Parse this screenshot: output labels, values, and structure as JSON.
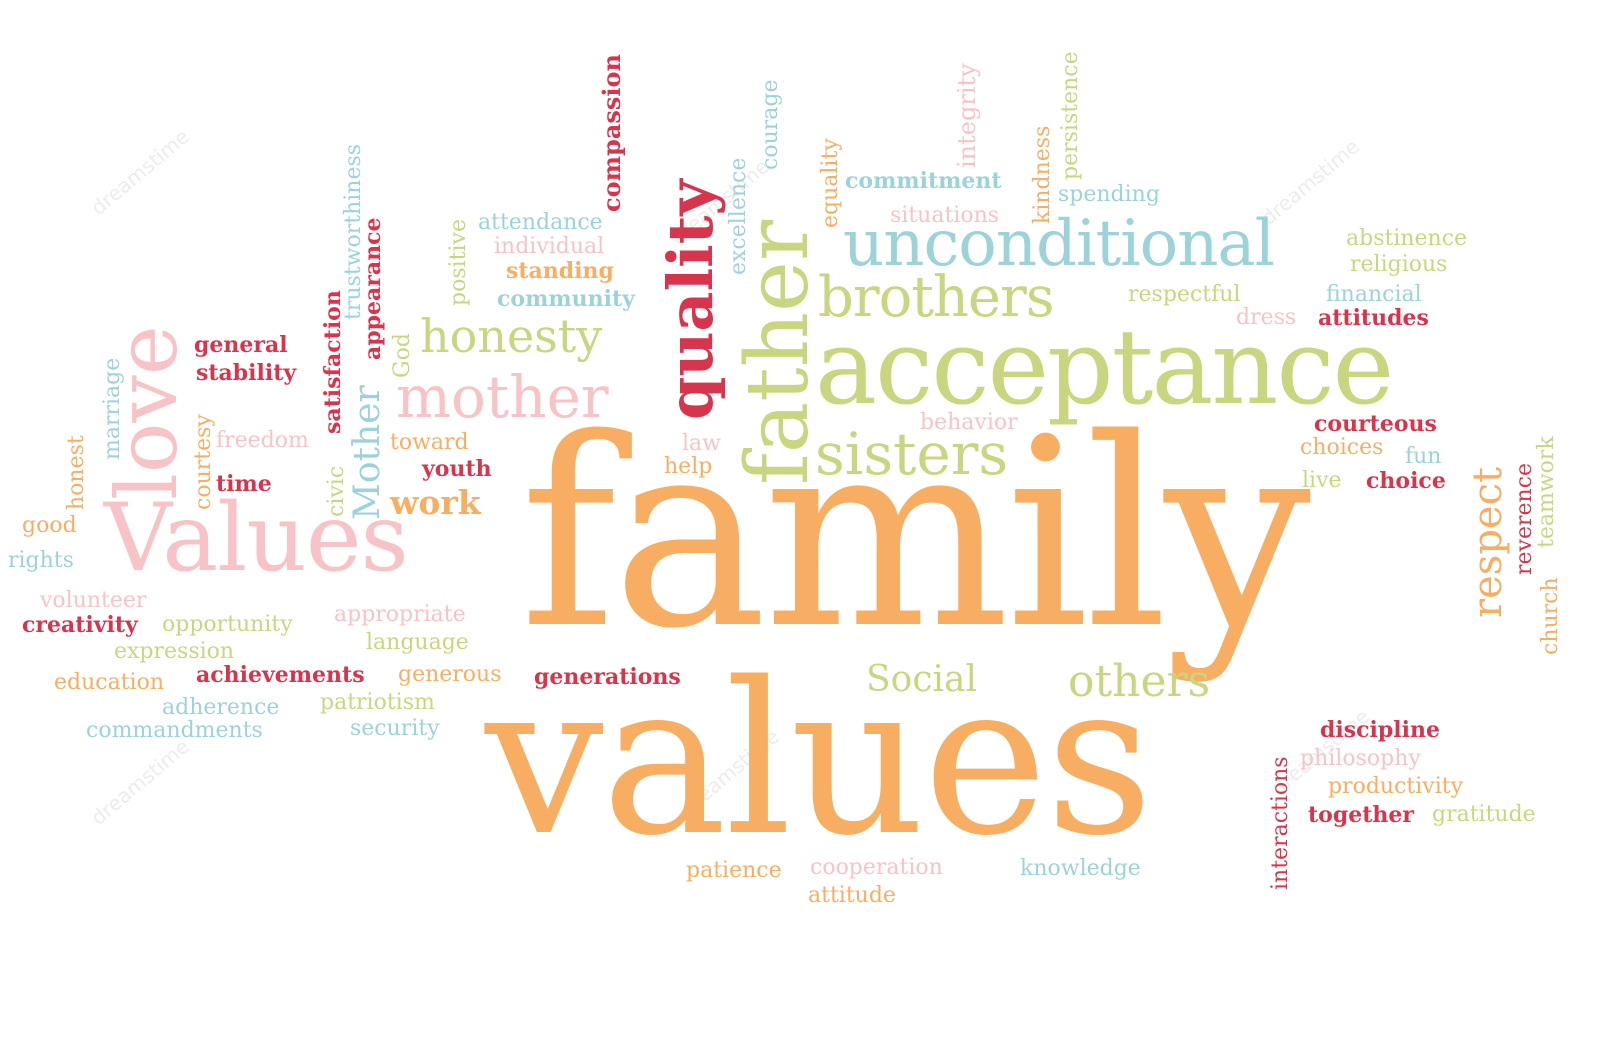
{
  "colors": {
    "orange": "#f7ae62",
    "green": "#c9d67f",
    "pink": "#f8c3c6",
    "blue": "#9cd3d9",
    "red": "#d7344d"
  },
  "watermark": "dreamstime",
  "words": {
    "family": "family",
    "values": "values",
    "acceptance": "acceptance",
    "unconditional": "unconditional",
    "brothers": "brothers",
    "sisters": "sisters",
    "father": "father",
    "quality": "quality",
    "love": "love",
    "values_cap": "Values",
    "mother": "mother",
    "honesty": "honesty",
    "others": "others",
    "social": "Social",
    "respect": "respect",
    "work": "work",
    "youth": "youth",
    "toward": "toward",
    "mother_cap": "Mother",
    "god": "God",
    "civic": "civic",
    "appearance": "appearance",
    "satisfaction": "satisfaction",
    "trustworthiness": "trustworthiness",
    "positive": "positive",
    "compassion": "compassion",
    "attendance": "attendance",
    "individual": "individual",
    "standing": "standing",
    "community": "community",
    "excellence": "excellence",
    "courage": "courage",
    "equality": "equality",
    "commitment": "commitment",
    "integrity": "integrity",
    "situations": "situations",
    "kindness": "kindness",
    "persistence": "persistence",
    "spending": "spending",
    "abstinence": "abstinence",
    "religious": "religious",
    "respectful": "respectful",
    "financial": "financial",
    "dress": "dress",
    "attitudes": "attitudes",
    "behavior": "behavior",
    "courteous": "courteous",
    "choices": "choices",
    "fun": "fun",
    "live": "live",
    "choice": "choice",
    "reverence": "reverence",
    "teamwork": "teamwork",
    "church": "church",
    "law": "law",
    "help": "help",
    "general": "general",
    "stability": "stability",
    "freedom": "freedom",
    "time": "time",
    "courtesy": "courtesy",
    "marriage": "marriage",
    "honest": "honest",
    "good": "good",
    "rights": "rights",
    "volunteer": "volunteer",
    "creativity": "creativity",
    "opportunity": "opportunity",
    "appropriate": "appropriate",
    "language": "language",
    "expression": "expression",
    "education": "education",
    "achievements": "achievements",
    "generous": "generous",
    "generations": "generations",
    "adherence": "adherence",
    "patriotism": "patriotism",
    "commandments": "commandments",
    "security": "security",
    "discipline": "discipline",
    "philosophy": "philosophy",
    "productivity": "productivity",
    "together": "together",
    "gratitude": "gratitude",
    "interactions": "interactions",
    "patience": "patience",
    "cooperation": "cooperation",
    "attitude": "attitude",
    "knowledge": "knowledge"
  }
}
